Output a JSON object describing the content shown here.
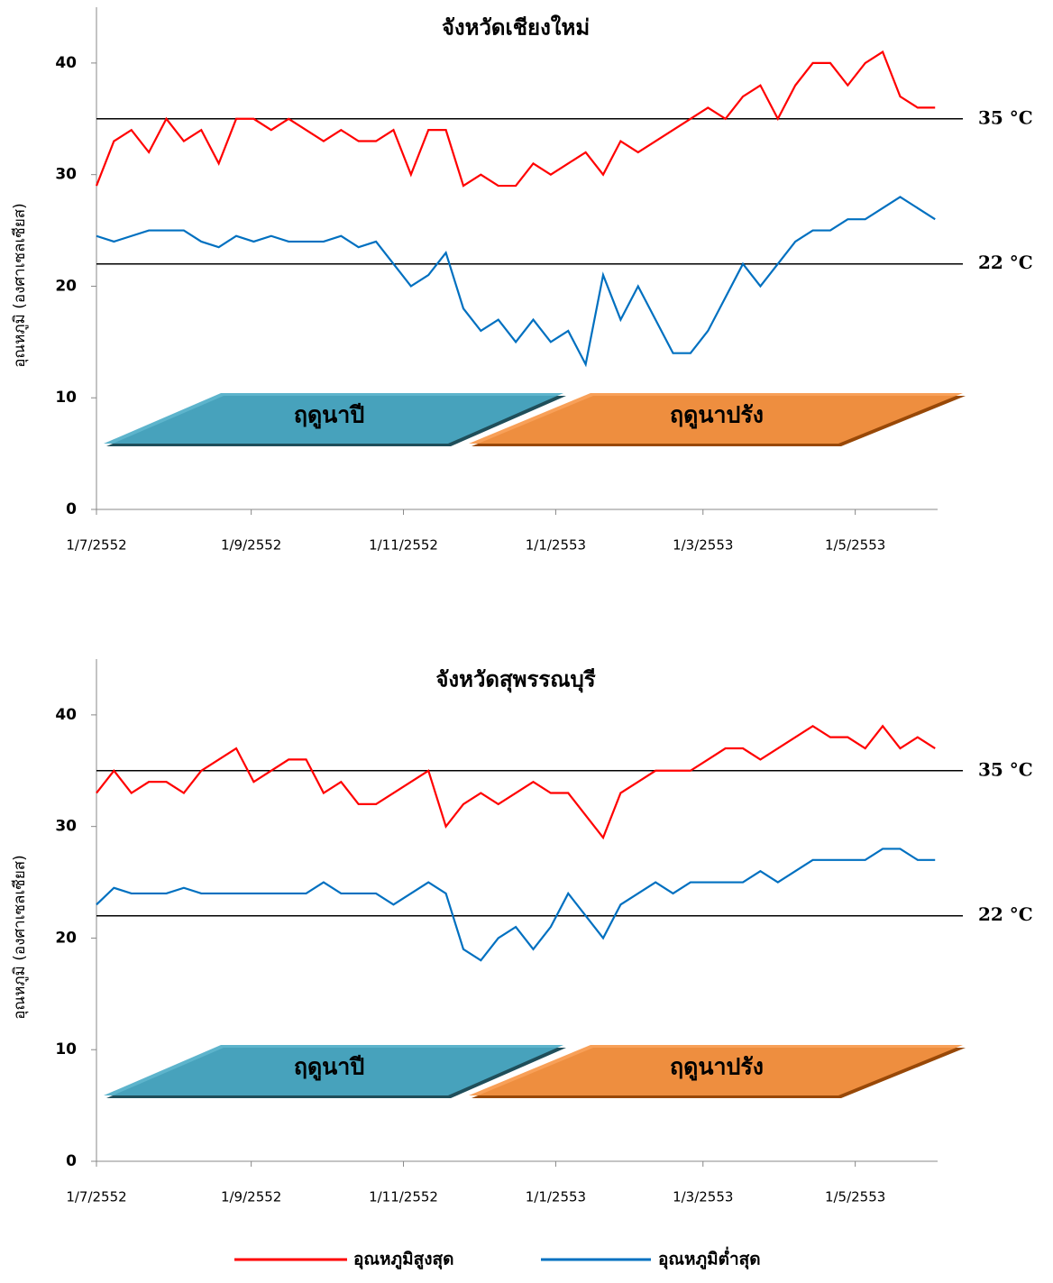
{
  "chart_data": [
    {
      "type": "line",
      "title": "จังหวัดเชียงใหม่",
      "y_label": "อุณหภูมิ (องศาเซลเซียส)",
      "x": [
        "1/7/2552",
        "8/7/2552",
        "15/7/2552",
        "22/7/2552",
        "29/7/2552",
        "5/8/2552",
        "12/8/2552",
        "19/8/2552",
        "26/8/2552",
        "2/9/2552",
        "9/9/2552",
        "16/9/2552",
        "23/9/2552",
        "30/9/2552",
        "7/10/2552",
        "14/10/2552",
        "21/10/2552",
        "28/10/2552",
        "4/11/2552",
        "11/11/2552",
        "18/11/2552",
        "25/11/2552",
        "2/12/2552",
        "9/12/2552",
        "16/12/2552",
        "23/12/2552",
        "30/12/2552",
        "6/1/2553",
        "13/1/2553",
        "20/1/2553",
        "27/1/2553",
        "3/2/2553",
        "10/2/2553",
        "17/2/2553",
        "24/2/2553",
        "3/3/2553",
        "10/3/2553",
        "17/3/2553",
        "24/3/2553",
        "31/3/2553",
        "7/4/2553",
        "14/4/2553",
        "21/4/2553",
        "28/4/2553",
        "5/5/2553",
        "12/5/2553",
        "19/5/2553",
        "26/5/2553",
        "2/6/2553"
      ],
      "xlim": [
        "1/7/2552",
        "3/6/2553"
      ],
      "xticks": [
        "1/7/2552",
        "1/9/2552",
        "1/11/2552",
        "1/1/2553",
        "1/3/2553",
        "1/5/2553"
      ],
      "ylim": [
        0,
        45
      ],
      "yticks": [
        0,
        10,
        20,
        30,
        40
      ],
      "series": [
        {
          "name": "อุณหภูมิสูงสุด",
          "color": "#ff0000",
          "values": [
            29,
            33,
            34,
            32,
            35,
            33,
            34,
            31,
            35,
            35,
            34,
            35,
            34,
            33,
            34,
            33,
            33,
            34,
            30,
            34,
            34,
            29,
            30,
            29,
            29,
            31,
            30,
            31,
            32,
            30,
            33,
            32,
            33,
            34,
            35,
            36,
            35,
            37,
            38,
            35,
            38,
            40,
            40,
            38,
            40,
            41,
            37,
            36,
            36
          ]
        },
        {
          "name": "อุณหภูมิต่ำสุด",
          "color": "#0070c0",
          "values": [
            24.5,
            24,
            24.5,
            25,
            25,
            25,
            24,
            23.5,
            24.5,
            24,
            24.5,
            24,
            24,
            24,
            24.5,
            23.5,
            24,
            22,
            20,
            21,
            23,
            18,
            16,
            17,
            15,
            17,
            15,
            16,
            13,
            21,
            17,
            20,
            17,
            14,
            14,
            16,
            19,
            22,
            20,
            22,
            24,
            25,
            25,
            26,
            26,
            27,
            28,
            27,
            26
          ]
        }
      ],
      "reference_lines": [
        {
          "value": 35,
          "label": "35 °C"
        },
        {
          "value": 22,
          "label": "22 °C"
        }
      ],
      "seasons": [
        "ฤดูนาปี",
        "ฤดูนาปรัง"
      ]
    },
    {
      "type": "line",
      "title": "จังหวัดสุพรรณบุรี",
      "y_label": "อุณหภูมิ (องศาเซลเซียส)",
      "x": [
        "1/7/2552",
        "8/7/2552",
        "15/7/2552",
        "22/7/2552",
        "29/7/2552",
        "5/8/2552",
        "12/8/2552",
        "19/8/2552",
        "26/8/2552",
        "2/9/2552",
        "9/9/2552",
        "16/9/2552",
        "23/9/2552",
        "30/9/2552",
        "7/10/2552",
        "14/10/2552",
        "21/10/2552",
        "28/10/2552",
        "4/11/2552",
        "11/11/2552",
        "18/11/2552",
        "25/11/2552",
        "2/12/2552",
        "9/12/2552",
        "16/12/2552",
        "23/12/2552",
        "30/12/2552",
        "6/1/2553",
        "13/1/2553",
        "20/1/2553",
        "27/1/2553",
        "3/2/2553",
        "10/2/2553",
        "17/2/2553",
        "24/2/2553",
        "3/3/2553",
        "10/3/2553",
        "17/3/2553",
        "24/3/2553",
        "31/3/2553",
        "7/4/2553",
        "14/4/2553",
        "21/4/2553",
        "28/4/2553",
        "5/5/2553",
        "12/5/2553",
        "19/5/2553",
        "26/5/2553",
        "2/6/2553"
      ],
      "xlim": [
        "1/7/2552",
        "3/6/2553"
      ],
      "xticks": [
        "1/7/2552",
        "1/9/2552",
        "1/11/2552",
        "1/1/2553",
        "1/3/2553",
        "1/5/2553"
      ],
      "ylim": [
        0,
        45
      ],
      "yticks": [
        0,
        10,
        20,
        30,
        40
      ],
      "series": [
        {
          "name": "อุณหภูมิสูงสุด",
          "color": "#ff0000",
          "values": [
            33,
            35,
            33,
            34,
            34,
            33,
            35,
            36,
            37,
            34,
            35,
            36,
            36,
            33,
            34,
            32,
            32,
            33,
            34,
            35,
            30,
            32,
            33,
            32,
            33,
            34,
            33,
            33,
            31,
            29,
            33,
            34,
            35,
            35,
            35,
            36,
            37,
            37,
            36,
            37,
            38,
            39,
            38,
            38,
            37,
            39,
            37,
            38,
            37
          ]
        },
        {
          "name": "อุณหภูมิต่ำสุด",
          "color": "#0070c0",
          "values": [
            23,
            24.5,
            24,
            24,
            24,
            24.5,
            24,
            24,
            24,
            24,
            24,
            24,
            24,
            25,
            24,
            24,
            24,
            23,
            24,
            25,
            24,
            19,
            18,
            20,
            21,
            19,
            21,
            24,
            22,
            20,
            23,
            24,
            25,
            24,
            25,
            25,
            25,
            25,
            26,
            25,
            26,
            27,
            27,
            27,
            27,
            28,
            28,
            27,
            27
          ]
        }
      ],
      "reference_lines": [
        {
          "value": 35,
          "label": "35 °C"
        },
        {
          "value": 22,
          "label": "22 °C"
        }
      ],
      "seasons": [
        "ฤดูนาปี",
        "ฤดูนาปรัง"
      ]
    }
  ]
}
